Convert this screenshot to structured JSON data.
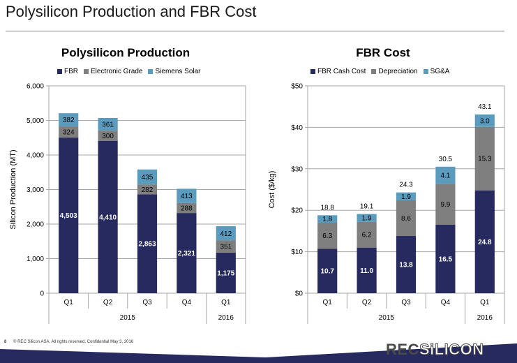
{
  "slide": {
    "title": "Polysilicon Production and FBR Cost",
    "footer_page": "6",
    "footer_text": "© REC Silicon ASA. All rights reserved. Confidential  May 3, 2016",
    "logo_part1": "REC",
    "logo_part2": "SiLICON"
  },
  "colors": {
    "navy": "#262a5e",
    "gray": "#7f7f7f",
    "lightblue": "#5b9bbd"
  },
  "chart_data": [
    {
      "type": "bar",
      "stacked": true,
      "title": "Polysilicon Production",
      "ylabel": "Silicon Production (MT)",
      "ylim": [
        0,
        6000
      ],
      "yticks": [
        "0",
        "1,000",
        "2,000",
        "3,000",
        "4,000",
        "5,000",
        "6,000"
      ],
      "categories": [
        "Q1",
        "Q2",
        "Q3",
        "Q4",
        "Q1"
      ],
      "groups": [
        {
          "label": "2015",
          "span": 4
        },
        {
          "label": "2016",
          "span": 1
        }
      ],
      "legend_position": "top",
      "series": [
        {
          "name": "FBR",
          "color": "#262a5e",
          "values": [
            4503,
            4410,
            2863,
            2321,
            1175
          ],
          "labels": [
            "4,503",
            "4,410",
            "2,863",
            "2,321",
            "1,175"
          ]
        },
        {
          "name": "Electronic Grade",
          "color": "#7f7f7f",
          "values": [
            324,
            300,
            282,
            288,
            351
          ],
          "labels": [
            "324",
            "300",
            "282",
            "288",
            "351"
          ]
        },
        {
          "name": "Siemens Solar",
          "color": "#5b9bbd",
          "values": [
            382,
            361,
            435,
            413,
            412
          ],
          "labels": [
            "382",
            "361",
            "435",
            "413",
            "412"
          ]
        }
      ],
      "totals": []
    },
    {
      "type": "bar",
      "stacked": true,
      "title": "FBR Cost",
      "ylabel": "Cost ($/kg)",
      "ylim": [
        0,
        50
      ],
      "yticks": [
        "$0",
        "$10",
        "$20",
        "$30",
        "$40",
        "$50"
      ],
      "categories": [
        "Q1",
        "Q2",
        "Q3",
        "Q4",
        "Q1"
      ],
      "groups": [
        {
          "label": "2015",
          "span": 4
        },
        {
          "label": "2016",
          "span": 1
        }
      ],
      "legend_position": "top",
      "series": [
        {
          "name": "FBR Cash Cost",
          "color": "#262a5e",
          "values": [
            10.7,
            11.0,
            13.8,
            16.5,
            24.8
          ],
          "labels": [
            "10.7",
            "11.0",
            "13.8",
            "16.5",
            "24.8"
          ]
        },
        {
          "name": "Depreciation",
          "color": "#7f7f7f",
          "values": [
            6.3,
            6.2,
            8.6,
            9.9,
            15.3
          ],
          "labels": [
            "6.3",
            "6.2",
            "8.6",
            "9.9",
            "15.3"
          ]
        },
        {
          "name": "SG&A",
          "color": "#5b9bbd",
          "values": [
            1.8,
            1.9,
            1.9,
            4.1,
            3.0
          ],
          "labels": [
            "1.8",
            "1.9",
            "1.9",
            "4.1",
            "3.0"
          ]
        }
      ],
      "totals": [
        "18.8",
        "19.1",
        "24.3",
        "30.5",
        "43.1"
      ]
    }
  ]
}
